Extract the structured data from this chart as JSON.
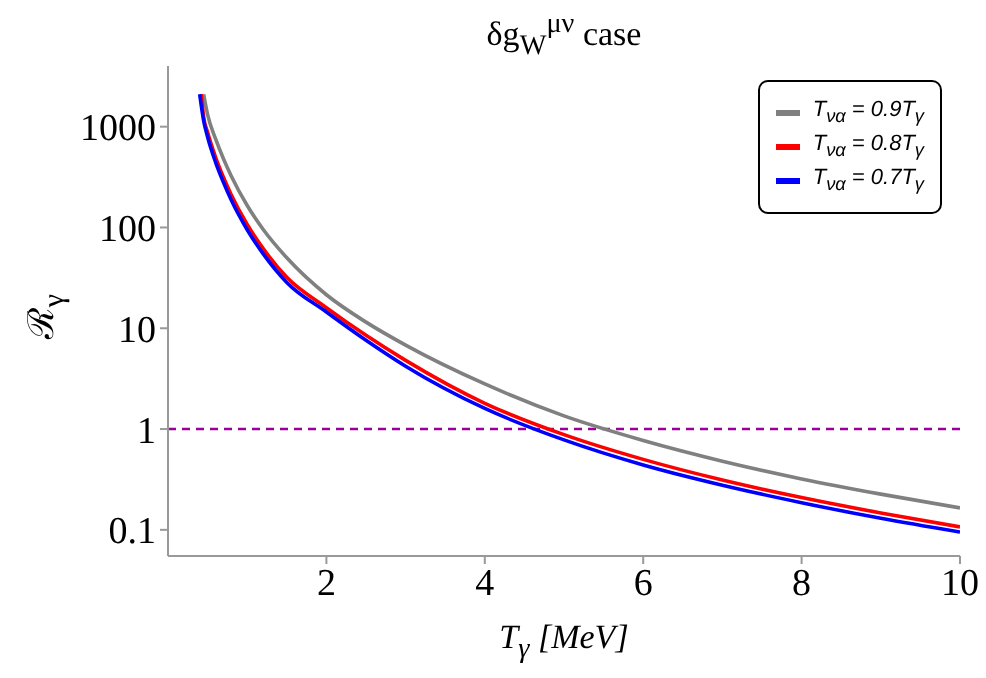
{
  "chart_data": {
    "type": "line",
    "title": "δg$_{W}$$^{μν}$ case",
    "xlabel": "T$_{γ}$ [MeV]",
    "ylabel": "ℛ$_{γ}$",
    "log": "y",
    "xlim": [
      0,
      10
    ],
    "xticks": [
      2,
      4,
      6,
      8,
      10
    ],
    "ylim": [
      0.055,
      4000
    ],
    "yticks": [
      0.1,
      1,
      10,
      100,
      1000
    ],
    "grid": false,
    "legend": "top right",
    "marker": "none",
    "line_style": "solid",
    "series": [
      {
        "name": "T$_{να}$ = 0.9T$_{γ}$",
        "color": "#808080",
        "x": [
          0.45,
          0.5,
          0.6,
          0.7,
          0.8,
          1,
          1.2,
          1.5,
          2,
          2.5,
          3,
          4,
          5,
          6,
          7,
          8,
          9,
          10
        ],
        "values": [
          2100,
          1320,
          760,
          480,
          322,
          165,
          96,
          50,
          21.5,
          11.5,
          6.8,
          2.8,
          1.35,
          0.77,
          0.48,
          0.32,
          0.226,
          0.165
        ]
      },
      {
        "name": "T$_{να}$ = 0.8T$_{γ}$",
        "color": "#ff0000",
        "x": [
          0.42,
          0.45,
          0.5,
          0.6,
          0.7,
          0.8,
          1,
          1.2,
          1.5,
          2,
          2.5,
          3,
          4,
          5,
          6,
          7,
          8,
          9,
          10
        ],
        "values": [
          2100,
          1250,
          880,
          500,
          315,
          210,
          107,
          62,
          32,
          16,
          8.5,
          4.8,
          1.8,
          0.88,
          0.5,
          0.312,
          0.209,
          0.147,
          0.107
        ]
      },
      {
        "name": "T$_{να}$ = 0.7T$_{γ}$",
        "color": "#0000ff",
        "x": [
          0.4,
          0.45,
          0.5,
          0.6,
          0.7,
          0.8,
          1,
          1.2,
          1.5,
          2,
          2.5,
          3,
          4,
          5,
          6,
          7,
          8,
          9,
          10
        ],
        "values": [
          2100,
          1150,
          790,
          445,
          280,
          186,
          95,
          55,
          28.5,
          14.5,
          7.6,
          4.2,
          1.6,
          0.78,
          0.44,
          0.277,
          0.186,
          0.13,
          0.095
        ]
      }
    ],
    "ref_lines": [
      {
        "axis": "y",
        "value": 1,
        "color": "#990099",
        "line_style": "dashed"
      }
    ]
  }
}
